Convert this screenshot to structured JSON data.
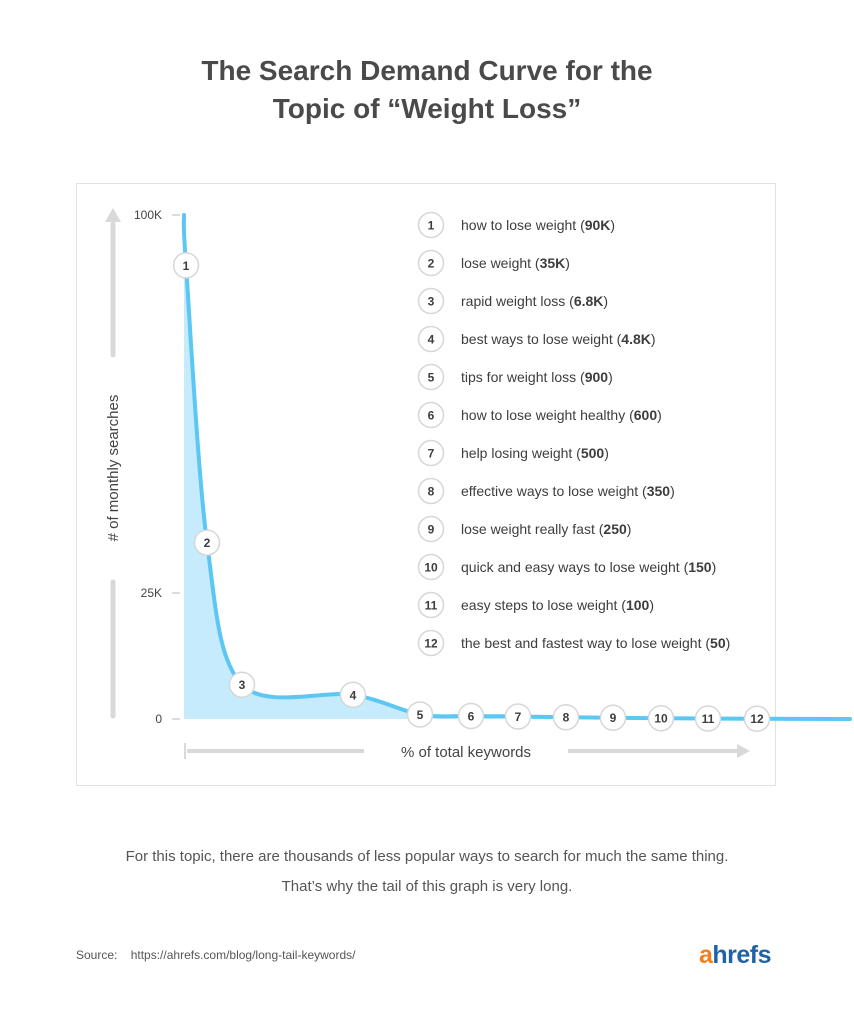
{
  "title": {
    "line1": "The Search Demand Curve for the",
    "line2": "Topic of “Weight Loss”"
  },
  "chart_data": {
    "type": "area",
    "ylabel": "# of monthly searches",
    "xlabel": "% of total keywords",
    "y_ticks": [
      "100K",
      "25K",
      "0"
    ],
    "ylim": [
      0,
      100000
    ],
    "grid": false,
    "legend_position": "top-right",
    "colors": {
      "curve": "#5cc7f2",
      "fill": "#c5ebfc",
      "marker_border": "#d7d7d7",
      "text": "#3d3d3d"
    },
    "keywords": [
      {
        "rank": "1",
        "keyword": "how to lose weight",
        "volume_label": "90K",
        "volume": 90000
      },
      {
        "rank": "2",
        "keyword": "lose weight",
        "volume_label": "35K",
        "volume": 35000
      },
      {
        "rank": "3",
        "keyword": "rapid weight loss",
        "volume_label": "6.8K",
        "volume": 6800
      },
      {
        "rank": "4",
        "keyword": "best ways to lose weight",
        "volume_label": "4.8K",
        "volume": 4800
      },
      {
        "rank": "5",
        "keyword": "tips for weight loss",
        "volume_label": "900",
        "volume": 900
      },
      {
        "rank": "6",
        "keyword": "how to lose weight healthy",
        "volume_label": "600",
        "volume": 600
      },
      {
        "rank": "7",
        "keyword": "help losing weight",
        "volume_label": "500",
        "volume": 500
      },
      {
        "rank": "8",
        "keyword": "effective ways to lose weight",
        "volume_label": "350",
        "volume": 350
      },
      {
        "rank": "9",
        "keyword": "lose weight really fast",
        "volume_label": "250",
        "volume": 250
      },
      {
        "rank": "10",
        "keyword": "quick and easy ways to lose weight",
        "volume_label": "150",
        "volume": 150
      },
      {
        "rank": "11",
        "keyword": "easy steps to lose weight",
        "volume_label": "100",
        "volume": 100
      },
      {
        "rank": "12",
        "keyword": "the best and fastest way to lose weight",
        "volume_label": "50",
        "volume": 50
      }
    ]
  },
  "caption": {
    "line1": "For this topic, there are thousands of less popular ways to search for much the same thing.",
    "line2": "That’s why the tail of this graph is very long."
  },
  "source": {
    "label": "Source:",
    "url": "https://ahrefs.com/blog/long-tail-keywords/"
  },
  "logo": {
    "a": "a",
    "rest": "hrefs"
  }
}
